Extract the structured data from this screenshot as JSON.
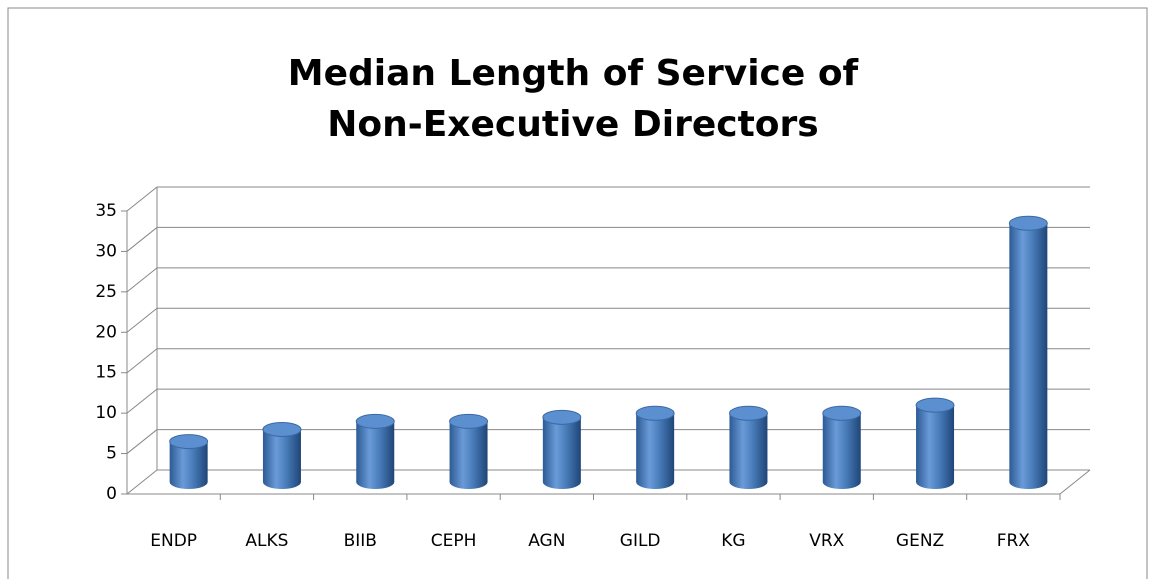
{
  "chart_data": {
    "type": "bar",
    "title": [
      "Median Length of Service of",
      "Non-Executive Directors"
    ],
    "categories": [
      "ENDP",
      "ALKS",
      "BIIB",
      "CEPH",
      "AGN",
      "GILD",
      "KG",
      "VRX",
      "GENZ",
      "FRX"
    ],
    "values": [
      5,
      6.5,
      7.5,
      7.5,
      8,
      8.5,
      8.5,
      8.5,
      9.5,
      32
    ],
    "color": "#4a7ebb",
    "ylim": [
      0,
      35
    ],
    "yticks": [
      0,
      5,
      10,
      15,
      20,
      25,
      30,
      35
    ],
    "grid": true
  }
}
